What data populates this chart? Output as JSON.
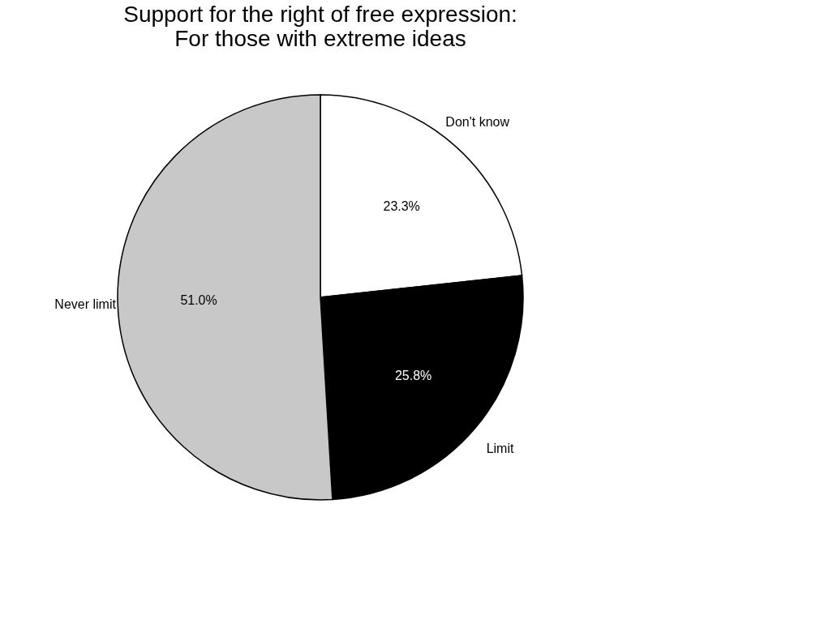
{
  "chart_data": {
    "type": "pie",
    "title": "Support for the right of free expression:\nFor those with extreme ideas",
    "categories": [
      "Don't know",
      "Limit",
      "Never limit"
    ],
    "values": [
      23.3,
      25.8,
      51.0
    ],
    "value_labels": [
      "23.3%",
      "25.8%",
      "51.0%"
    ],
    "colors": [
      "#ffffff",
      "#000000",
      "#c8c8c8"
    ]
  }
}
